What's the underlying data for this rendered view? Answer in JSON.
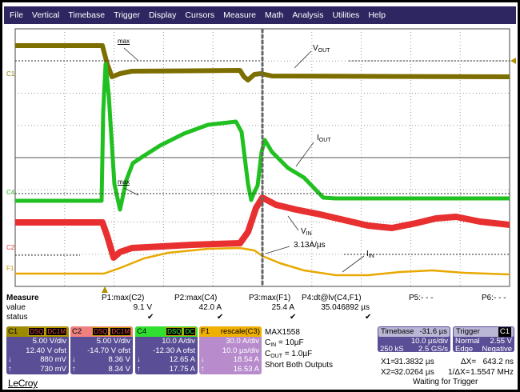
{
  "menu": [
    "File",
    "Vertical",
    "Timebase",
    "Trigger",
    "Display",
    "Cursors",
    "Measure",
    "Math",
    "Analysis",
    "Utilities",
    "Help"
  ],
  "colors": {
    "menu_bg": "#2e2660",
    "c1": "#7d6e00",
    "c2": "#e83030",
    "c4": "#20c020",
    "f1": "#e8a800",
    "panel": "#5a4f96"
  },
  "plot": {
    "channel_markers": [
      "C1",
      "C4",
      "C2",
      "F1"
    ],
    "annotations": {
      "max1": "max",
      "max2": "max",
      "vout_main": "V",
      "vout_sub": "OUT",
      "iout_main": "I",
      "iout_sub": "OUT",
      "vin_main": "V",
      "vin_sub": "IN",
      "iin_main": "I",
      "iin_sub": "IN",
      "slope": "3.13A/µs"
    }
  },
  "measure": {
    "title": "Measure",
    "row_value": "value",
    "row_status": "status",
    "params": [
      {
        "name": "P1:max(C2)",
        "value": "9.1 V",
        "status": "✔"
      },
      {
        "name": "P2:max(C4)",
        "value": "42.0 A",
        "status": "✔"
      },
      {
        "name": "P3:max(F1)",
        "value": "25.4 A",
        "status": "✔"
      },
      {
        "name": "P4:dt@lv(C4,F1)",
        "value": "35.046892 µs",
        "status": "✔"
      },
      {
        "name": "P5:- - -",
        "value": "",
        "status": ""
      },
      {
        "name": "P6:- - -",
        "value": "",
        "status": ""
      }
    ]
  },
  "channels": [
    {
      "id": "C1",
      "tags": [
        "DSQ",
        "DC1M"
      ],
      "vdiv": "5.00 V/div",
      "ofst": "12.40 V ofst",
      "down": "880 mV",
      "up": "730 mV"
    },
    {
      "id": "C2",
      "tags": [
        "DSQ",
        "DC1M"
      ],
      "vdiv": "5.00 V/div",
      "ofst": "-14.70 V ofst",
      "down": "8.36 V",
      "up": "8.34 V"
    },
    {
      "id": "C4",
      "tags": [
        "DSQ",
        "DC"
      ],
      "vdiv": "10.0 A/div",
      "ofst": "-12.30 A ofst",
      "down": "12.65 A",
      "up": "17.75 A"
    },
    {
      "id": "F1",
      "tags": [
        "rescale(C3)"
      ],
      "vdiv": "30.0 A/div",
      "ofst": "10.0 µs/div",
      "down": "18.54 A",
      "up": "16.53 A"
    }
  ],
  "notes": {
    "part": "MAX1558",
    "cin_main": "C",
    "cin_sub": "IN",
    "cin_val": " = 10µF",
    "cout_main": "C",
    "cout_sub": "OUT",
    "cout_val": " = 1.0µF",
    "desc": "Short Both Outputs"
  },
  "timebase": {
    "label": "Timebase",
    "delay": "-31.6 µs",
    "tdiv": "10.0 µs/div",
    "samples": "250 kS",
    "rate": "2.5 GS/s"
  },
  "trigger": {
    "label": "Trigger",
    "source": "C1",
    "mode": "Normal",
    "level": "2.55 V",
    "type": "Edge",
    "slope": "Negative"
  },
  "cursors": {
    "x1_label": "X1=",
    "x1": "31.3832 µs",
    "dx_label": "ΔX=",
    "dx": "643.2 ns",
    "x2_label": "X2=",
    "x2": "32.0264 µs",
    "inv_label": "1/ΔX=",
    "inv": "1.5547 MHz"
  },
  "status": "Waiting for Trigger",
  "brand": "LeCroy"
}
